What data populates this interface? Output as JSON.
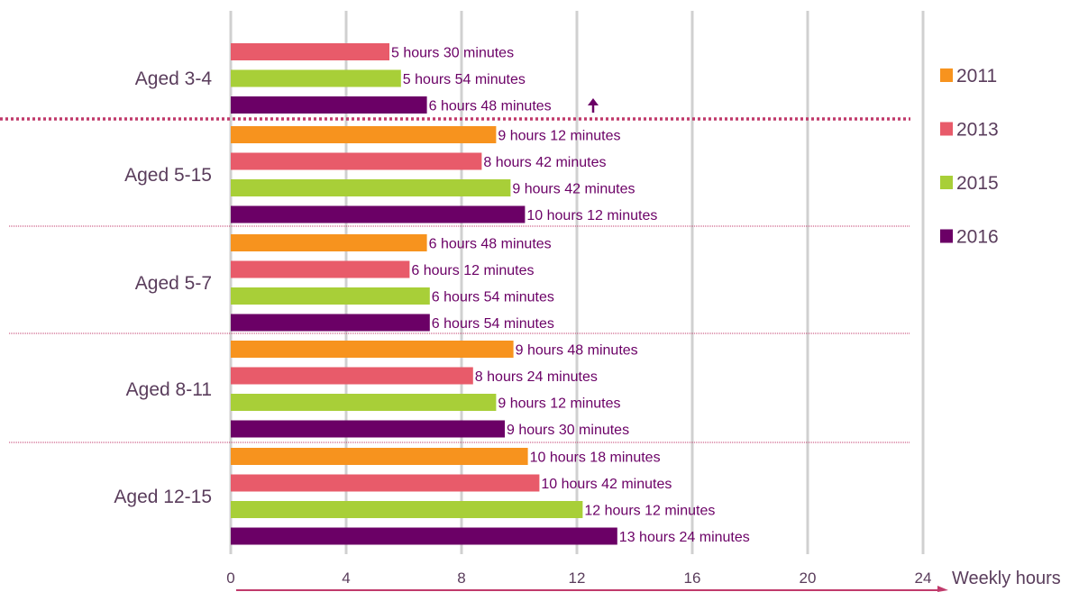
{
  "chart_data": {
    "type": "bar",
    "orientation": "horizontal",
    "xlabel": "Weekly hours",
    "xlim": [
      0,
      24
    ],
    "xticks": [
      0,
      4,
      8,
      12,
      16,
      20,
      24
    ],
    "xtick_labels": [
      "0",
      "4",
      "8",
      "12",
      "16",
      "20",
      "24"
    ],
    "grid": true,
    "legend_position": "right",
    "categories": [
      "Aged 3-4",
      "Aged 5-15",
      "Aged 5-7",
      "Aged 8-11",
      "Aged 12-15"
    ],
    "series": [
      {
        "name": "2011",
        "color": "#F7931E",
        "values": [
          null,
          9.2,
          6.8,
          9.8,
          10.3
        ],
        "labels": [
          "",
          "9 hours 12 minutes",
          "6 hours 48 minutes",
          "9 hours 48 minutes",
          "10 hours 18 minutes"
        ]
      },
      {
        "name": "2013",
        "color": "#E85B6A",
        "values": [
          5.5,
          8.7,
          6.2,
          8.4,
          10.7
        ],
        "labels": [
          "5 hours 30 minutes",
          "8 hours 42 minutes",
          "6 hours 12 minutes",
          "8 hours 24 minutes",
          "10 hours 42 minutes"
        ]
      },
      {
        "name": "2015",
        "color": "#A8CF38",
        "values": [
          5.9,
          9.7,
          6.9,
          9.2,
          12.2
        ],
        "labels": [
          "5 hours 54 minutes",
          "9 hours 42 minutes",
          "6 hours 54 minutes",
          "9 hours 12 minutes",
          "12 hours 12 minutes"
        ]
      },
      {
        "name": "2016",
        "color": "#6B0066",
        "values": [
          6.8,
          10.2,
          6.9,
          9.5,
          13.4
        ],
        "labels": [
          "6 hours 48 minutes",
          "10 hours 12 minutes",
          "6 hours 54 minutes",
          "9 hours 30 minutes",
          "13 hours 24 minutes"
        ]
      }
    ],
    "annotations": [
      {
        "type": "up-arrow",
        "category": "Aged 3-4",
        "series": "2016",
        "color": "#6B0066"
      }
    ],
    "label_color": "#6B0066",
    "text_color": "#5A3D5C",
    "grid_color": "#D0D0D0",
    "divider_color": "#C03A6B",
    "axis_arrow_color": "#C03A6B"
  }
}
